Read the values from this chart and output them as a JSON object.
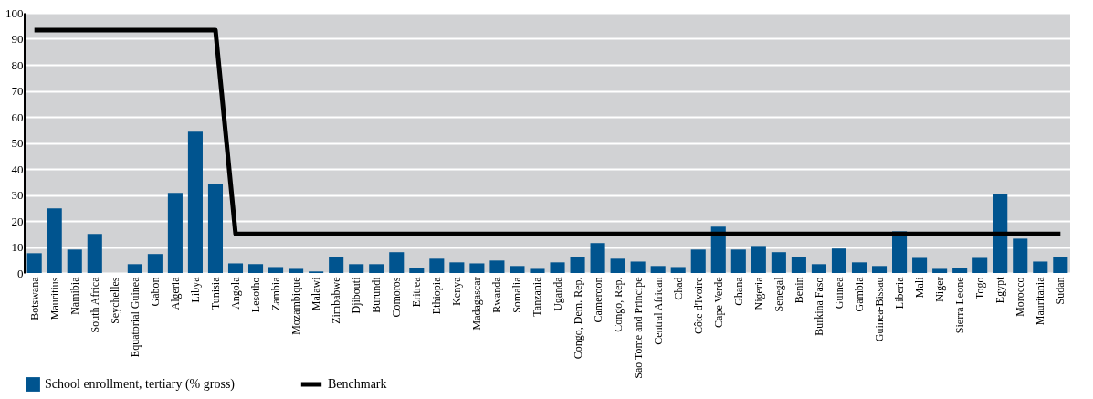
{
  "chart_data": {
    "type": "bar",
    "categories": [
      "Botswana",
      "Mauritius",
      "Namibia",
      "South Africa",
      "Seychelles",
      "Equatorial Guinea",
      "Gabon",
      "Algeria",
      "Libya",
      "Tunisia",
      "Angola",
      "Lesotho",
      "Zambia",
      "Mozambique",
      "Malawi",
      "Zimbabwe",
      "Djibouti",
      "Burundi",
      "Comoros",
      "Eritrea",
      "Ethiopia",
      "Kenya",
      "Madagascar",
      "Rwanda",
      "Somalia",
      "Tanzania",
      "Uganda",
      "Congo, Dem. Rep.",
      "Cameroon",
      "Congo, Rep.",
      "Sao Tome and Principe",
      "Central African",
      "Chad",
      "Côte d'Ivoire",
      "Cape Verde",
      "Ghana",
      "Nigeria",
      "Senegal",
      "Benin",
      "Burkina Faso",
      "Guinea",
      "Gambia",
      "Guinea-Bissau",
      "Liberia",
      "Mali",
      "Niger",
      "Sierra Leone",
      "Togo",
      "Egypt",
      "Morocco",
      "Mauritania",
      "Sudan"
    ],
    "series": [
      {
        "name": "School enrollment, tertiary (% gross)",
        "color": "#00548f",
        "values": [
          7.6,
          24.8,
          9.0,
          15.0,
          0,
          3.4,
          7.3,
          30.8,
          54.3,
          34.3,
          3.7,
          3.4,
          2.3,
          1.6,
          0.6,
          6.2,
          3.4,
          3.4,
          8.0,
          2.0,
          5.5,
          4.1,
          3.7,
          4.8,
          2.7,
          1.6,
          4.1,
          6.2,
          11.5,
          5.5,
          4.4,
          2.7,
          2.3,
          9.0,
          17.8,
          9.0,
          10.4,
          8.0,
          6.2,
          3.4,
          9.4,
          4.1,
          2.7,
          16.0,
          5.8,
          1.6,
          2.0,
          5.8,
          30.4,
          13.2,
          4.4,
          6.2
        ]
      },
      {
        "name": "Benchmark",
        "type": "line",
        "color": "#000000",
        "values": [
          93.3,
          93.3,
          93.3,
          93.3,
          93.3,
          93.3,
          93.3,
          93.3,
          93.3,
          93.3,
          15,
          15,
          15,
          15,
          15,
          15,
          15,
          15,
          15,
          15,
          15,
          15,
          15,
          15,
          15,
          15,
          15,
          15,
          15,
          15,
          15,
          15,
          15,
          15,
          15,
          15,
          15,
          15,
          15,
          15,
          15,
          15,
          15,
          15,
          15,
          15,
          15,
          15,
          15,
          15,
          15,
          15
        ]
      }
    ],
    "ylim": [
      0,
      100
    ],
    "yticks": [
      0,
      10,
      20,
      30,
      40,
      50,
      60,
      70,
      80,
      90,
      100
    ],
    "grid": "y",
    "legend": "bottom left",
    "line_style": "solid",
    "marker": "none"
  }
}
